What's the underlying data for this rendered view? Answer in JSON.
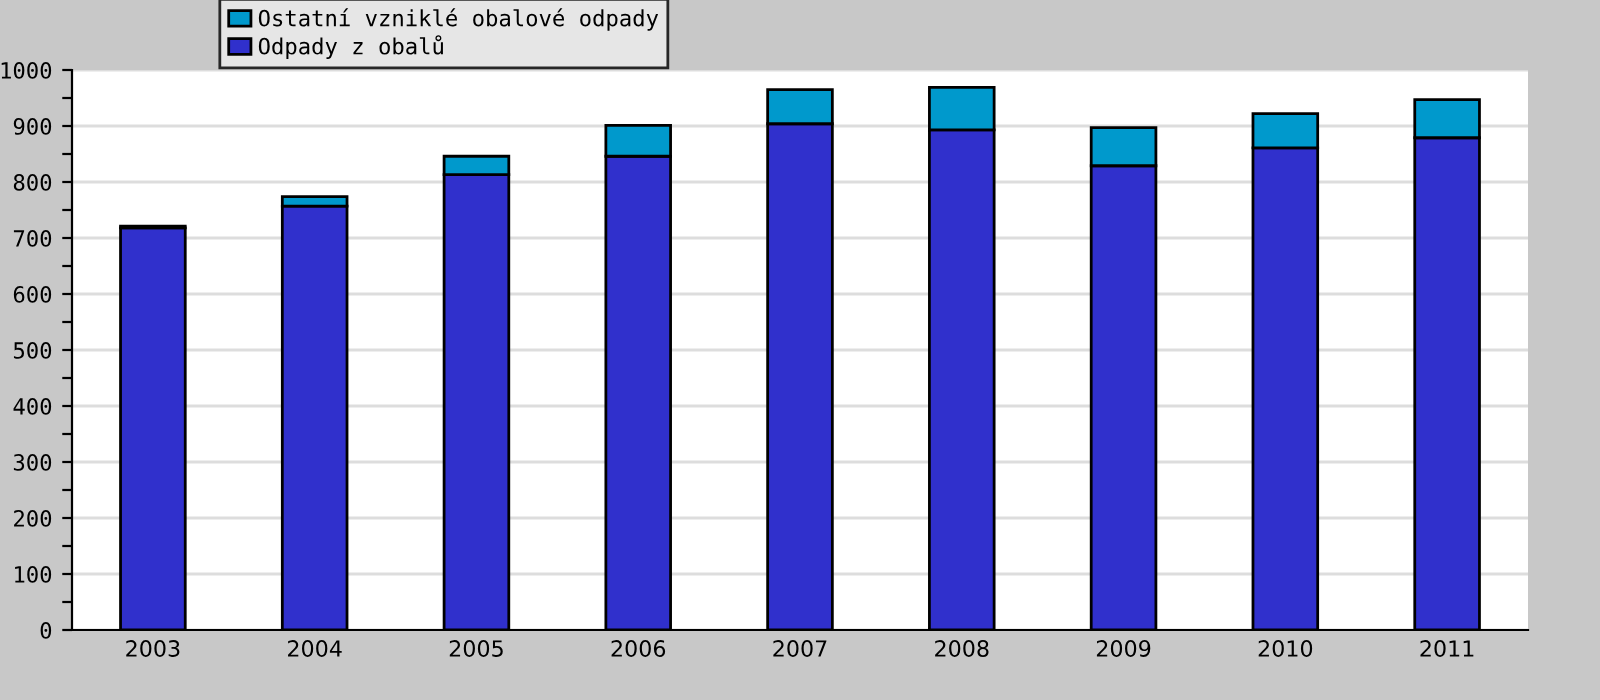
{
  "chart_data": {
    "type": "bar",
    "stacked": true,
    "categories": [
      "2003",
      "2004",
      "2005",
      "2006",
      "2007",
      "2008",
      "2009",
      "2010",
      "2011"
    ],
    "series": [
      {
        "name": "Odpady z obalů",
        "color": "#3030cc",
        "values": [
          718,
          757,
          813,
          846,
          904,
          893,
          829,
          861,
          879
        ]
      },
      {
        "name": "Ostatní vzniklé obalové odpady",
        "color": "#0099cc",
        "values": [
          3,
          17,
          33,
          55,
          61,
          76,
          68,
          61,
          68
        ]
      }
    ],
    "ylim": [
      0,
      1000
    ],
    "yticks": [
      0,
      {
        "value": 50,
        "label": null
      },
      100,
      {
        "value": 150,
        "label": null
      },
      200,
      {
        "value": 250,
        "label": null
      },
      300,
      {
        "value": 350,
        "label": null
      },
      400,
      {
        "value": 450,
        "label": null
      },
      500,
      {
        "value": 550,
        "label": null
      },
      600,
      {
        "value": 650,
        "label": null
      },
      700,
      {
        "value": 750,
        "label": null
      },
      800,
      {
        "value": 850,
        "label": null
      },
      900,
      {
        "value": 950,
        "label": null
      },
      1000
    ],
    "grid": "y",
    "legend": "top left"
  }
}
